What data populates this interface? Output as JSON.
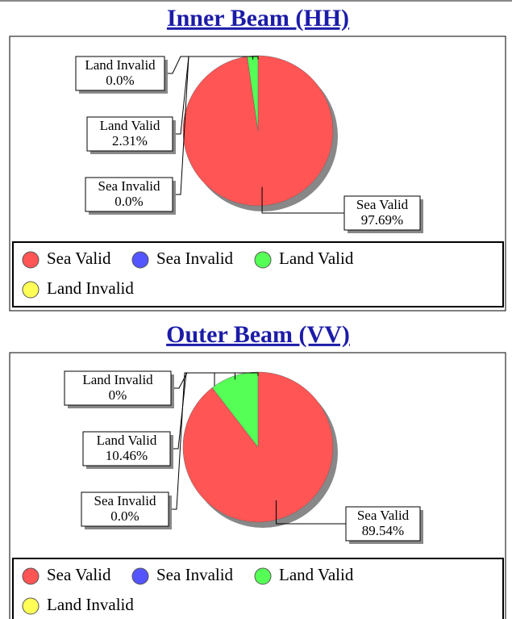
{
  "chart_data": [
    {
      "type": "pie",
      "title": "Inner Beam (HH)",
      "categories": [
        "Sea Valid",
        "Sea Invalid",
        "Land Valid",
        "Land Invalid"
      ],
      "values": [
        97.69,
        0,
        2.31,
        0
      ],
      "value_labels": [
        "97.69%",
        "0.0%",
        "2.31%",
        "0.0%"
      ],
      "colors": [
        "#ff5555",
        "#5555ff",
        "#55ff55",
        "#ffff55"
      ]
    },
    {
      "type": "pie",
      "title": "Outer Beam (VV)",
      "categories": [
        "Sea Valid",
        "Sea Invalid",
        "Land Valid",
        "Land Invalid"
      ],
      "values": [
        89.54,
        0,
        10.46,
        0
      ],
      "value_labels": [
        "89.54%",
        "0.0%",
        "10.46%",
        "0%"
      ],
      "colors": [
        "#ff5555",
        "#5555ff",
        "#55ff55",
        "#ffff55"
      ]
    }
  ]
}
